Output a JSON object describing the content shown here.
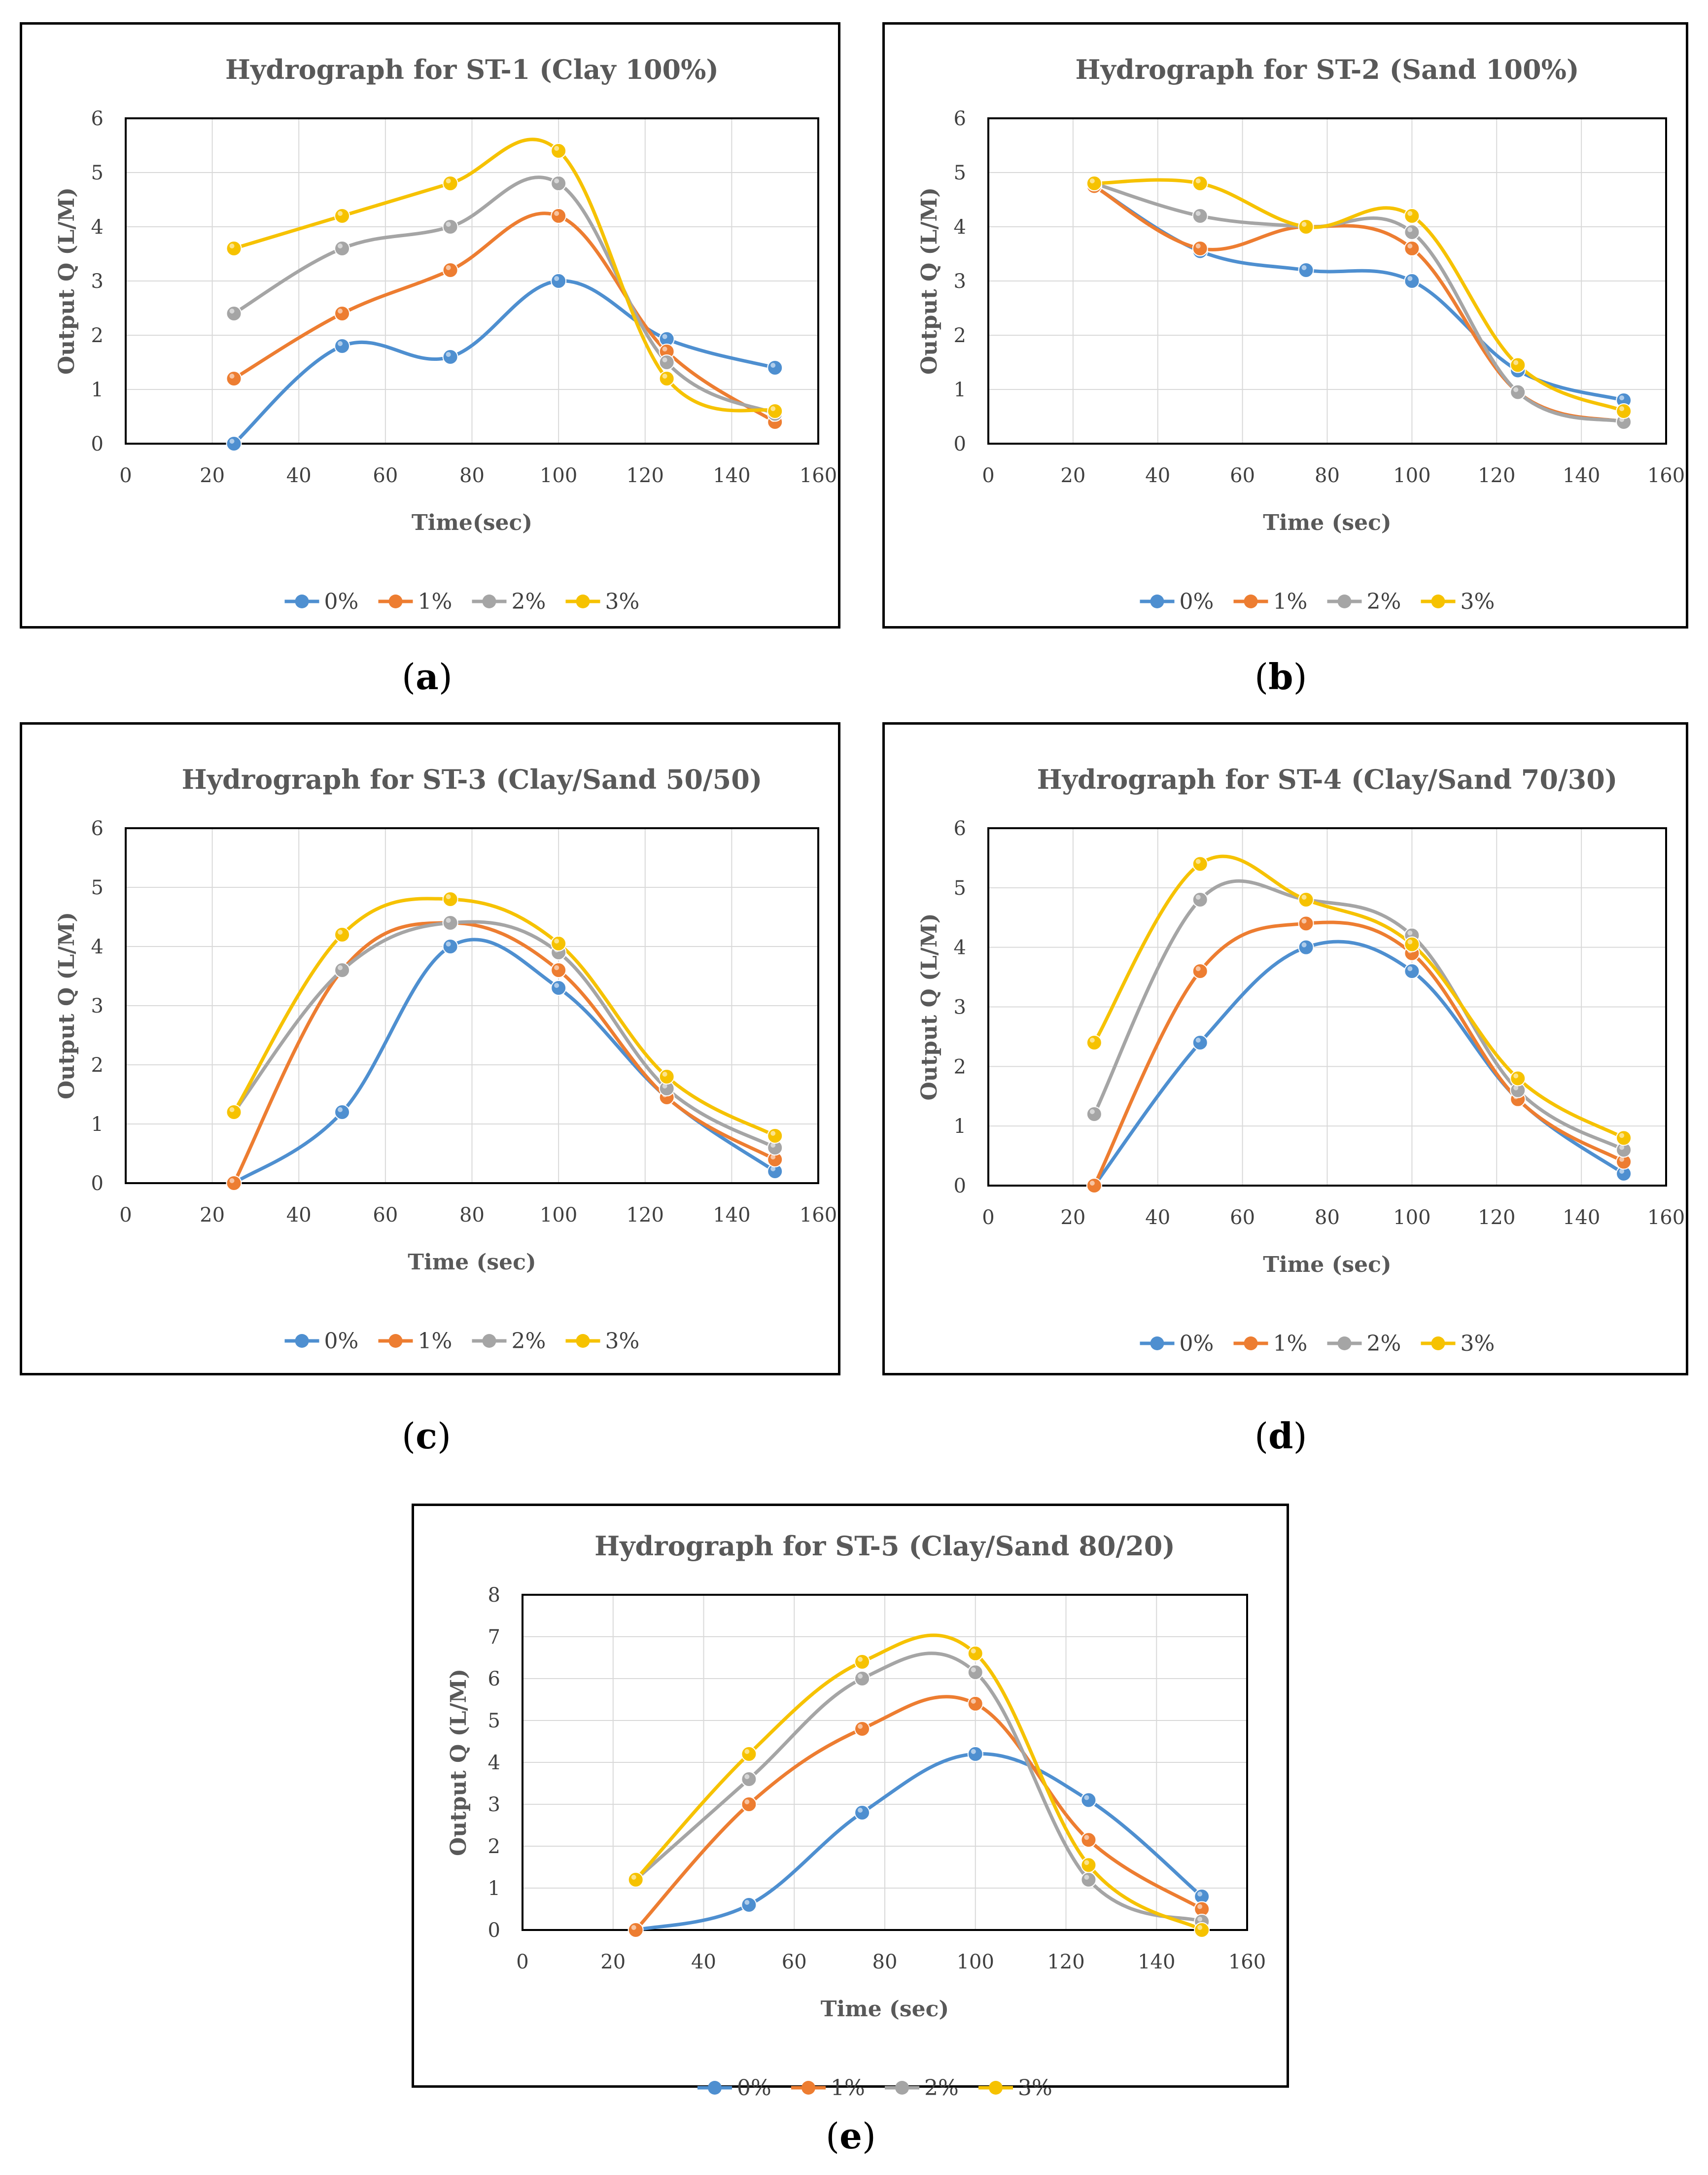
{
  "captions": [
    "a",
    "b",
    "c",
    "d",
    "e"
  ],
  "legend": {
    "labels": [
      "0%",
      "1%",
      "2%",
      "3%"
    ],
    "colors": [
      "#4e8fd0",
      "#ed7d31",
      "#a5a5a5",
      "#f6c200"
    ]
  },
  "chart_data": [
    {
      "type": "line",
      "title": "Hydrograph for ST-1 (Clay 100%)",
      "xlabel": "Time(sec)",
      "ylabel": "Output Q (L/M)",
      "xlim": [
        0,
        160
      ],
      "xticks": [
        0,
        20,
        40,
        60,
        80,
        100,
        120,
        140,
        160
      ],
      "ylim": [
        0,
        6
      ],
      "yticks": [
        0,
        1,
        2,
        3,
        4,
        5,
        6
      ],
      "x": [
        25,
        50,
        75,
        100,
        125,
        150
      ],
      "series": [
        {
          "name": "0%",
          "values": [
            0,
            1.8,
            1.6,
            3.0,
            1.93,
            1.4
          ]
        },
        {
          "name": "1%",
          "values": [
            1.2,
            2.4,
            3.2,
            4.2,
            1.7,
            0.4
          ]
        },
        {
          "name": "2%",
          "values": [
            2.4,
            3.6,
            4.0,
            4.8,
            1.5,
            0.55
          ]
        },
        {
          "name": "3%",
          "values": [
            3.6,
            4.2,
            4.8,
            5.4,
            1.2,
            0.6
          ]
        }
      ]
    },
    {
      "type": "line",
      "title": "Hydrograph for ST-2 (Sand 100%)",
      "xlabel": "Time (sec)",
      "ylabel": "Output Q (L/M)",
      "xlim": [
        0,
        160
      ],
      "xticks": [
        0,
        20,
        40,
        60,
        80,
        100,
        120,
        140,
        160
      ],
      "ylim": [
        0,
        6
      ],
      "yticks": [
        0,
        1,
        2,
        3,
        4,
        5,
        6
      ],
      "x": [
        25,
        50,
        75,
        100,
        125,
        150
      ],
      "series": [
        {
          "name": "0%",
          "values": [
            4.75,
            3.55,
            3.2,
            3.0,
            1.35,
            0.8
          ]
        },
        {
          "name": "1%",
          "values": [
            4.75,
            3.6,
            4.0,
            3.6,
            0.95,
            0.4
          ]
        },
        {
          "name": "2%",
          "values": [
            4.8,
            4.2,
            4.0,
            3.9,
            0.95,
            0.4
          ]
        },
        {
          "name": "3%",
          "values": [
            4.8,
            4.8,
            4.0,
            4.2,
            1.45,
            0.6
          ]
        }
      ]
    },
    {
      "type": "line",
      "title": "Hydrograph for ST-3 (Clay/Sand 50/50)",
      "xlabel": "Time (sec)",
      "ylabel": "Output Q (L/M)",
      "xlim": [
        0,
        160
      ],
      "xticks": [
        0,
        20,
        40,
        60,
        80,
        100,
        120,
        140,
        160
      ],
      "ylim": [
        0,
        6
      ],
      "yticks": [
        0,
        1,
        2,
        3,
        4,
        5,
        6
      ],
      "x": [
        25,
        50,
        75,
        100,
        125,
        150
      ],
      "series": [
        {
          "name": "0%",
          "values": [
            0,
            1.2,
            4.0,
            3.3,
            1.45,
            0.2
          ]
        },
        {
          "name": "1%",
          "values": [
            0,
            3.6,
            4.4,
            3.6,
            1.45,
            0.4
          ]
        },
        {
          "name": "2%",
          "values": [
            1.2,
            3.6,
            4.4,
            3.9,
            1.6,
            0.6
          ]
        },
        {
          "name": "3%",
          "values": [
            1.2,
            4.2,
            4.8,
            4.05,
            1.8,
            0.8
          ]
        }
      ]
    },
    {
      "type": "line",
      "title": "Hydrograph for ST-4 (Clay/Sand 70/30)",
      "xlabel": "Time (sec)",
      "ylabel": "Output Q (L/M)",
      "xlim": [
        0,
        160
      ],
      "xticks": [
        0,
        20,
        40,
        60,
        80,
        100,
        120,
        140,
        160
      ],
      "ylim": [
        0,
        6
      ],
      "yticks": [
        0,
        1,
        2,
        3,
        4,
        5,
        6
      ],
      "x": [
        25,
        50,
        75,
        100,
        125,
        150
      ],
      "series": [
        {
          "name": "0%",
          "values": [
            0,
            2.4,
            4.0,
            3.6,
            1.45,
            0.2
          ]
        },
        {
          "name": "1%",
          "values": [
            0,
            3.6,
            4.4,
            3.9,
            1.45,
            0.4
          ]
        },
        {
          "name": "2%",
          "values": [
            1.2,
            4.8,
            4.8,
            4.2,
            1.6,
            0.6
          ]
        },
        {
          "name": "3%",
          "values": [
            2.4,
            5.4,
            4.8,
            4.05,
            1.8,
            0.8
          ]
        }
      ]
    },
    {
      "type": "line",
      "title": "Hydrograph for ST-5 (Clay/Sand 80/20)",
      "xlabel": "Time (sec)",
      "ylabel": "Output Q (L/M)",
      "xlim": [
        0,
        160
      ],
      "xticks": [
        0,
        20,
        40,
        60,
        80,
        100,
        120,
        140,
        160
      ],
      "ylim": [
        0,
        8
      ],
      "yticks": [
        0,
        1,
        2,
        3,
        4,
        5,
        6,
        7,
        8
      ],
      "x": [
        25,
        50,
        75,
        100,
        125,
        150
      ],
      "series": [
        {
          "name": "0%",
          "values": [
            0,
            0.6,
            2.8,
            4.2,
            3.1,
            0.8
          ]
        },
        {
          "name": "1%",
          "values": [
            0,
            3.0,
            4.8,
            5.4,
            2.15,
            0.5
          ]
        },
        {
          "name": "2%",
          "values": [
            1.2,
            3.6,
            6.0,
            6.15,
            1.2,
            0.2
          ]
        },
        {
          "name": "3%",
          "values": [
            1.2,
            4.2,
            6.4,
            6.6,
            1.55,
            0
          ]
        }
      ]
    }
  ]
}
